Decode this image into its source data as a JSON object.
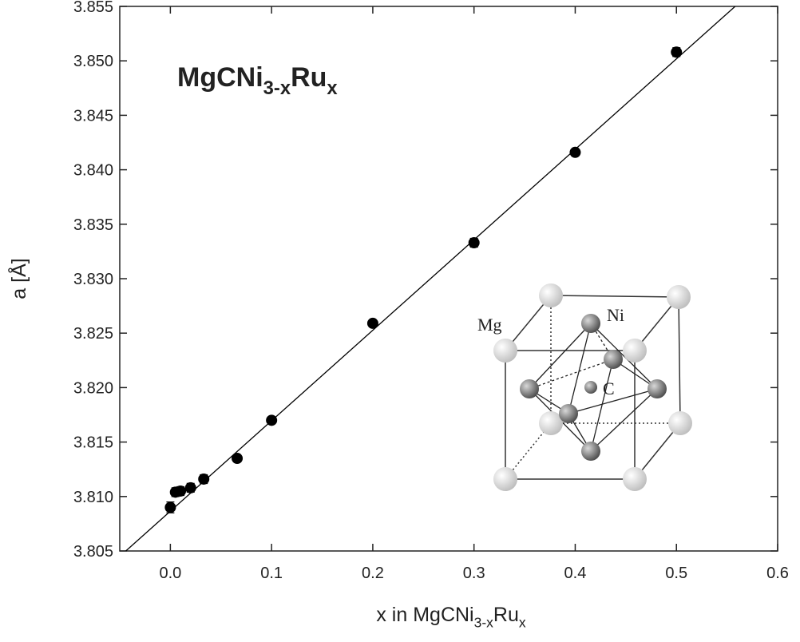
{
  "chart_data": {
    "type": "scatter",
    "title_parts": [
      "MgCNi",
      "3-x",
      "Ru",
      "x"
    ],
    "xlabel_parts": [
      "x in MgCNi",
      "3-x",
      "Ru",
      "x"
    ],
    "ylabel": "a [Å]",
    "x": [
      0.0,
      0.005,
      0.01,
      0.02,
      0.033,
      0.066,
      0.1,
      0.2,
      0.3,
      0.4,
      0.5
    ],
    "values": [
      3.809,
      3.8104,
      3.8105,
      3.8108,
      3.8116,
      3.8135,
      3.817,
      3.8259,
      3.8333,
      3.8416,
      3.8508
    ],
    "errors": [
      0.0005,
      0.0004,
      0.0004,
      0.0004,
      0.0004,
      0.0003,
      0.0003,
      0.0003,
      0.0004,
      0.0003,
      0.0004
    ],
    "color": "#000000",
    "fit": {
      "x": [
        -0.044,
        0.558
      ],
      "values": [
        3.805,
        3.855
      ],
      "color": "#000000"
    },
    "xlim": [
      -0.05,
      0.6
    ],
    "ylim": [
      3.805,
      3.855
    ],
    "xticks": [
      {
        "value": 0,
        "label": "0.0"
      },
      0.1,
      0.2,
      0.3,
      0.4,
      0.5,
      0.6
    ],
    "yticks": [
      3.805,
      {
        "value": 3.81,
        "label": "3.810"
      },
      3.815,
      {
        "value": 3.82,
        "label": "3.820"
      },
      3.825,
      {
        "value": 3.83,
        "label": "3.830"
      },
      3.835,
      {
        "value": 3.84,
        "label": "3.840"
      },
      3.845,
      {
        "value": 3.85,
        "label": "3.850"
      },
      3.855
    ],
    "inset": {
      "labels": [
        "Mg",
        "Ni",
        "C"
      ]
    }
  }
}
